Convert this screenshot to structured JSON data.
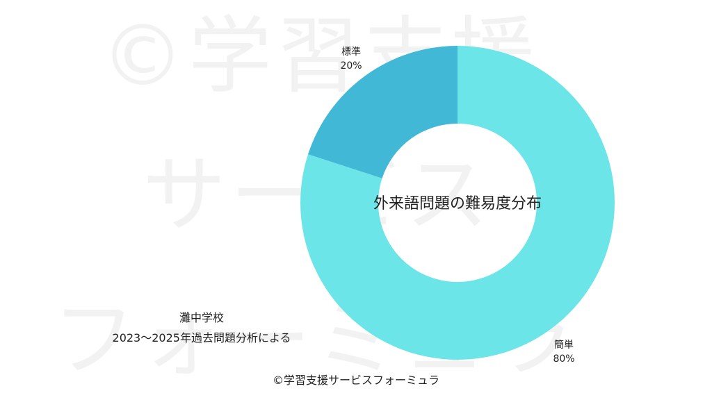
{
  "watermark": {
    "line1": "©学習支援",
    "line2": "サービス",
    "line3": "フォーミュラ"
  },
  "chart_data": {
    "type": "pie",
    "title": "外来語問題の難易度分布",
    "categories": [
      "簡単",
      "標準"
    ],
    "values": [
      80,
      20
    ],
    "value_labels": [
      "80%",
      "20%"
    ],
    "colors": [
      "#6ce5e8",
      "#41b8d5"
    ]
  },
  "notes": {
    "school": "灘中学校",
    "source": "2023〜2025年過去問題分析による"
  },
  "copyright": "©学習支援サービスフォーミュラ"
}
